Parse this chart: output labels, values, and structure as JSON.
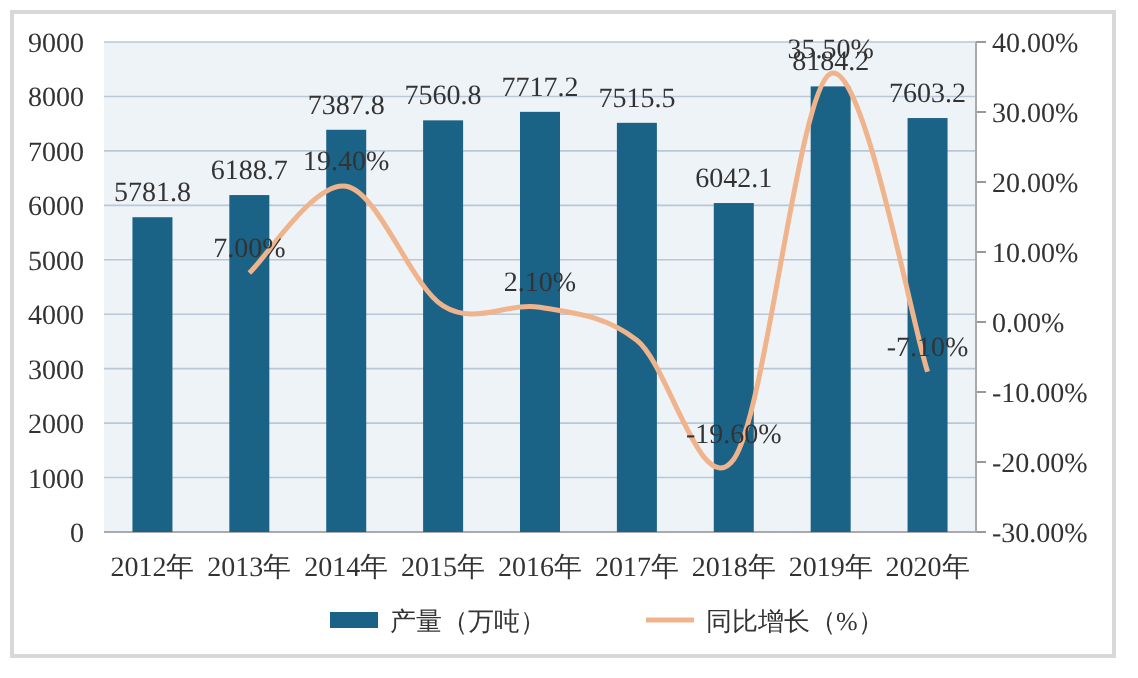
{
  "chart_data": {
    "type": "bar",
    "categories": [
      "2012年",
      "2013年",
      "2014年",
      "2015年",
      "2016年",
      "2017年",
      "2018年",
      "2019年",
      "2020年"
    ],
    "series": [
      {
        "name": "产量（万吨）",
        "color": "#1b6386",
        "values": [
          5781.8,
          6188.7,
          7387.8,
          7560.8,
          7717.2,
          7515.5,
          6042.1,
          8184.2,
          7603.2
        ],
        "data_labels": true
      },
      {
        "name": "同比增长（%）",
        "type": "line",
        "axis": "y2",
        "color": "#f0b48c",
        "values": [
          null,
          7.0,
          19.4,
          2.3,
          2.1,
          -2.6,
          -19.6,
          35.5,
          -7.1
        ],
        "value_labels": [
          null,
          "7.00%",
          "19.40%",
          null,
          "2.10%",
          null,
          "-19.60%",
          "35.50%",
          "-7.10%"
        ]
      }
    ],
    "ylim": [
      0,
      9000
    ],
    "yticks": [
      0,
      1000,
      2000,
      3000,
      4000,
      5000,
      6000,
      7000,
      8000,
      9000
    ],
    "y2lim": [
      -30,
      40
    ],
    "y2ticks": [
      {
        "value": -30,
        "label": "-30.00%"
      },
      {
        "value": -20,
        "label": "-20.00%"
      },
      {
        "value": -10,
        "label": "-10.00%"
      },
      {
        "value": 0,
        "label": "0.00%"
      },
      {
        "value": 10,
        "label": "10.00%"
      },
      {
        "value": 20,
        "label": "20.00%"
      },
      {
        "value": 30,
        "label": "30.00%"
      },
      {
        "value": 40,
        "label": "40.00%"
      }
    ],
    "grid": "y",
    "legend": "bottom",
    "marker": "none"
  }
}
